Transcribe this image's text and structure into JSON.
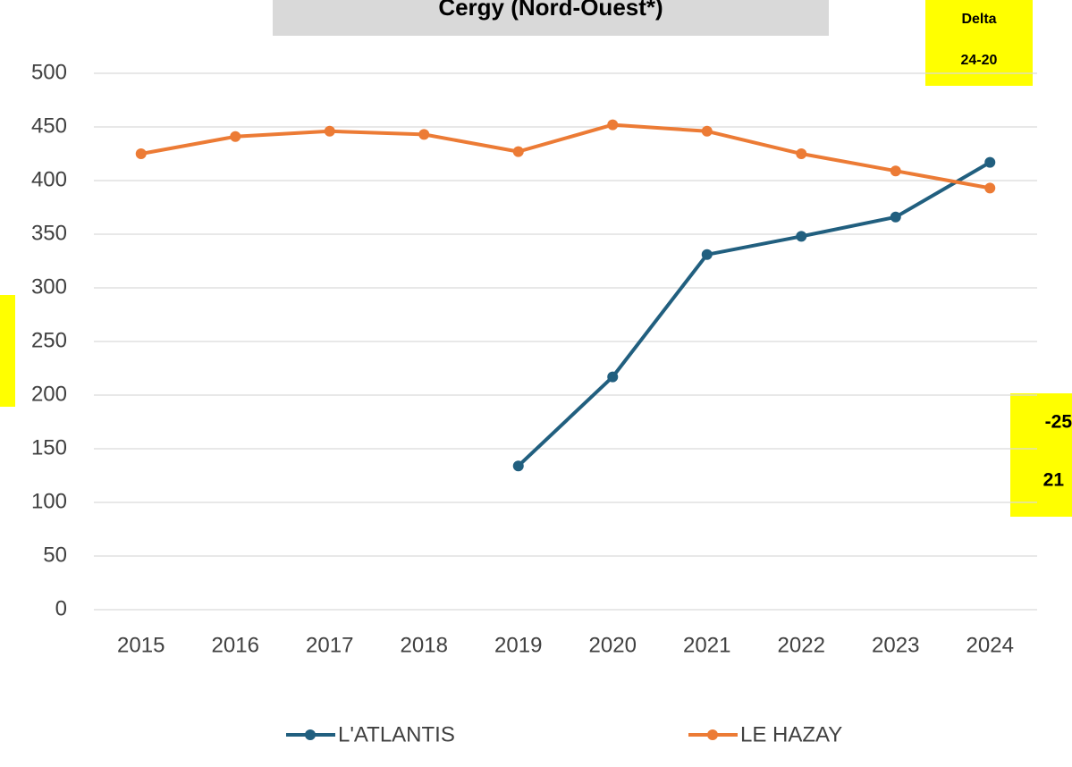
{
  "chart_data": {
    "type": "line",
    "title": "Cergy (Nord-Ouest*)",
    "categories": [
      "2015",
      "2016",
      "2017",
      "2018",
      "2019",
      "2020",
      "2021",
      "2022",
      "2023",
      "2024"
    ],
    "series": [
      {
        "name": "L'ATLANTIS",
        "color": "#215f7f",
        "values": [
          null,
          null,
          null,
          null,
          134,
          217,
          331,
          348,
          366,
          417
        ]
      },
      {
        "name": "LE HAZAY",
        "color": "#ec7b35",
        "values": [
          425,
          441,
          446,
          443,
          427,
          452,
          446,
          425,
          409,
          393
        ]
      }
    ],
    "ylim": [
      0,
      500
    ],
    "yticks": [
      0,
      50,
      100,
      150,
      200,
      250,
      300,
      350,
      400,
      450,
      500
    ],
    "grid": true,
    "annotations": [
      "Delta",
      "24-20",
      "-25",
      "21"
    ]
  }
}
